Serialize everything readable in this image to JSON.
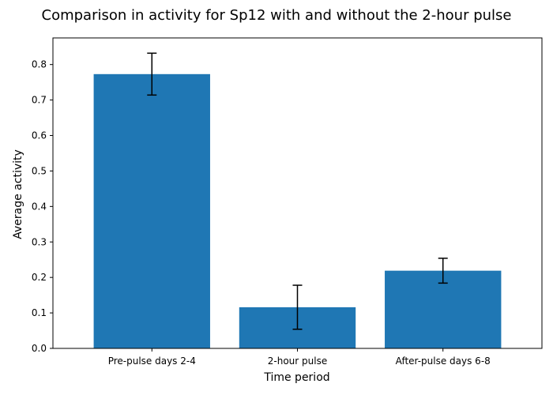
{
  "chart_data": {
    "type": "bar",
    "title": "Comparison in activity for Sp12 with and without the 2-hour pulse",
    "xlabel": "Time period",
    "ylabel": "Average activity",
    "categories": [
      "Pre-pulse days 2-4",
      "2-hour pulse",
      "After-pulse days 6-8"
    ],
    "values": [
      0.773,
      0.116,
      0.219
    ],
    "error": [
      0.059,
      0.062,
      0.035
    ],
    "ylim": [
      0,
      0.875
    ],
    "yticks": [
      0.0,
      0.1,
      0.2,
      0.3,
      0.4,
      0.5,
      0.6,
      0.7,
      0.8
    ],
    "ytick_labels": [
      "0.0",
      "0.1",
      "0.2",
      "0.3",
      "0.4",
      "0.5",
      "0.6",
      "0.7",
      "0.8"
    ],
    "grid": false,
    "bar_color": "#1f77b4",
    "error_color": "#000000"
  }
}
